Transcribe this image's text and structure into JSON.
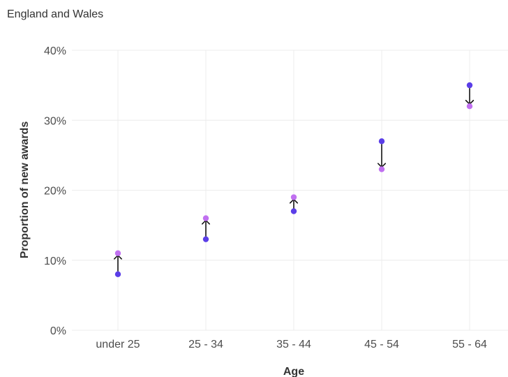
{
  "header": {
    "subtitle": "England and Wales"
  },
  "chart_data": {
    "type": "scatter",
    "subtitle": "England and Wales",
    "xlabel": "Age",
    "ylabel": "Proportion of new awards",
    "categories": [
      "under 25",
      "25 - 34",
      "35 - 44",
      "45 - 54",
      "55 - 64"
    ],
    "ylim": [
      0,
      40
    ],
    "yticks": [
      0,
      10,
      20,
      30,
      40
    ],
    "ytick_labels": [
      "0%",
      "10%",
      "20%",
      "30%",
      "40%"
    ],
    "grid": true,
    "series": [
      {
        "values": [
          8,
          13,
          17,
          27,
          35
        ]
      },
      {
        "values": [
          11,
          16,
          19,
          23,
          32
        ]
      }
    ],
    "arrows": [
      {
        "category": "under 25",
        "from": 8,
        "to": 11
      },
      {
        "category": "25 - 34",
        "from": 13,
        "to": 16
      },
      {
        "category": "35 - 44",
        "from": 17,
        "to": 19
      },
      {
        "category": "45 - 54",
        "from": 27,
        "to": 23
      },
      {
        "category": "55 - 64",
        "from": 35,
        "to": 32
      }
    ],
    "colors": {
      "start": "#5b3ee8",
      "end": "#c070f0",
      "arrow": "#111111",
      "grid": "#ececec"
    }
  }
}
